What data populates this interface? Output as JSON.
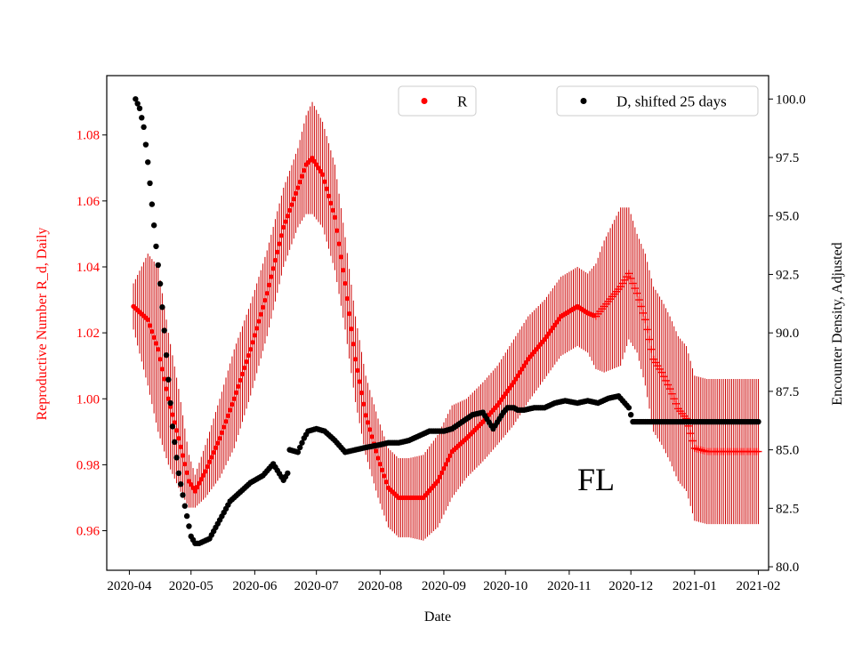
{
  "chart_data": {
    "type": "scatter",
    "xlabel": "Date",
    "ylabel_left": "Reproductive Number R_d, Daily",
    "ylabel_right": "Encounter Density, Adjusted",
    "annotation": "FL",
    "x_range": [
      "2020-03-21",
      "2021-02-06"
    ],
    "ylim_left": [
      0.948,
      1.098
    ],
    "ylim_right": [
      79.85,
      101.0
    ],
    "x_ticks": [
      "2020-04",
      "2020-05",
      "2020-06",
      "2020-07",
      "2020-08",
      "2020-09",
      "2020-10",
      "2020-11",
      "2020-12",
      "2021-01",
      "2021-02"
    ],
    "y_ticks_left": [
      "0.96",
      "0.98",
      "1.00",
      "1.02",
      "1.04",
      "1.06",
      "1.08"
    ],
    "y_ticks_right": [
      "80.0",
      "82.5",
      "85.0",
      "87.5",
      "90.0",
      "92.5",
      "95.0",
      "97.5",
      "100.0"
    ],
    "legend": [
      {
        "label": "R",
        "color": "#ff0000",
        "position": "upper-center"
      },
      {
        "label": "D, shifted 25 days",
        "color": "#000000",
        "position": "upper-right"
      }
    ],
    "colors": {
      "R": "#ff0000",
      "R_error": "#cc0000",
      "D": "#000000"
    },
    "series": [
      {
        "name": "R",
        "axis": "left",
        "marker_change_date": "2020-11-14",
        "x": [
          "2020-04-03",
          "2020-04-10",
          "2020-04-15",
          "2020-04-20",
          "2020-04-25",
          "2020-04-30",
          "2020-05-03",
          "2020-05-08",
          "2020-05-15",
          "2020-05-22",
          "2020-05-30",
          "2020-06-07",
          "2020-06-15",
          "2020-06-22",
          "2020-06-26",
          "2020-06-29",
          "2020-07-04",
          "2020-07-10",
          "2020-07-15",
          "2020-07-20",
          "2020-07-25",
          "2020-07-31",
          "2020-08-05",
          "2020-08-10",
          "2020-08-15",
          "2020-08-22",
          "2020-08-29",
          "2020-09-05",
          "2020-09-12",
          "2020-09-20",
          "2020-09-27",
          "2020-10-05",
          "2020-10-12",
          "2020-10-20",
          "2020-10-28",
          "2020-11-05",
          "2020-11-10",
          "2020-11-14",
          "2020-11-18",
          "2020-11-22",
          "2020-11-26",
          "2020-11-30",
          "2020-12-04",
          "2020-12-08",
          "2020-12-12",
          "2020-12-16",
          "2020-12-20",
          "2020-12-24",
          "2020-12-28",
          "2021-01-01",
          "2021-01-07",
          "2021-01-14",
          "2021-01-21",
          "2021-01-28",
          "2021-02-01"
        ],
        "y": [
          1.028,
          1.024,
          1.015,
          1.0,
          0.988,
          0.975,
          0.972,
          0.978,
          0.988,
          1.0,
          1.015,
          1.032,
          1.052,
          1.064,
          1.071,
          1.073,
          1.068,
          1.055,
          1.035,
          1.012,
          0.995,
          0.982,
          0.973,
          0.97,
          0.97,
          0.97,
          0.975,
          0.984,
          0.988,
          0.993,
          0.998,
          1.005,
          1.012,
          1.018,
          1.025,
          1.028,
          1.026,
          1.025,
          1.028,
          1.031,
          1.034,
          1.038,
          1.032,
          1.024,
          1.012,
          1.008,
          1.003,
          0.997,
          0.994,
          0.985,
          0.984,
          0.984,
          0.984,
          0.984,
          0.984
        ],
        "err": [
          0.007,
          0.02,
          0.025,
          0.02,
          0.015,
          0.008,
          0.005,
          0.008,
          0.012,
          0.015,
          0.014,
          0.013,
          0.012,
          0.012,
          0.015,
          0.017,
          0.016,
          0.016,
          0.014,
          0.013,
          0.012,
          0.012,
          0.012,
          0.012,
          0.012,
          0.013,
          0.014,
          0.014,
          0.012,
          0.012,
          0.012,
          0.013,
          0.013,
          0.012,
          0.012,
          0.012,
          0.012,
          0.016,
          0.02,
          0.022,
          0.024,
          0.02,
          0.018,
          0.02,
          0.022,
          0.022,
          0.022,
          0.022,
          0.022,
          0.022,
          0.022,
          0.022,
          0.022,
          0.022,
          0.022
        ]
      },
      {
        "name": "D, shifted 25 days",
        "axis": "right",
        "x": [
          "2020-04-04",
          "2020-04-06",
          "2020-04-08",
          "2020-04-10",
          "2020-04-12",
          "2020-04-14",
          "2020-04-16",
          "2020-04-18",
          "2020-04-20",
          "2020-04-22",
          "2020-04-25",
          "2020-04-28",
          "2020-05-01",
          "2020-05-03",
          "2020-05-05",
          "2020-05-10",
          "2020-05-15",
          "2020-05-20",
          "2020-05-25",
          "2020-05-30",
          "2020-06-05",
          "2020-06-10",
          "2020-06-15",
          "2020-06-17",
          "2020-06-18",
          "2020-06-22",
          "2020-06-25",
          "2020-06-27",
          "2020-07-01",
          "2020-07-05",
          "2020-07-10",
          "2020-07-15",
          "2020-07-20",
          "2020-07-25",
          "2020-07-31",
          "2020-08-05",
          "2020-08-10",
          "2020-08-15",
          "2020-08-20",
          "2020-08-25",
          "2020-08-28",
          "2020-09-01",
          "2020-09-05",
          "2020-09-10",
          "2020-09-15",
          "2020-09-20",
          "2020-09-25",
          "2020-09-30",
          "2020-10-02",
          "2020-10-05",
          "2020-10-07",
          "2020-10-10",
          "2020-10-15",
          "2020-10-20",
          "2020-10-25",
          "2020-10-30",
          "2020-11-05",
          "2020-11-10",
          "2020-11-15",
          "2020-11-20",
          "2020-11-25",
          "2020-11-28",
          "2020-11-30",
          "2020-12-02",
          "2020-12-05",
          "2020-12-10",
          "2020-12-20",
          "2020-12-31",
          "2021-01-10",
          "2021-01-20",
          "2021-02-01"
        ],
        "y": [
          100.0,
          99.6,
          98.8,
          97.3,
          95.5,
          93.7,
          92.1,
          90.1,
          88.0,
          86.0,
          84.0,
          82.6,
          81.3,
          81.0,
          81.0,
          81.2,
          82.0,
          82.8,
          83.2,
          83.6,
          83.9,
          84.4,
          83.7,
          84.0,
          85.0,
          84.9,
          85.5,
          85.8,
          85.9,
          85.8,
          85.4,
          84.9,
          85.0,
          85.1,
          85.2,
          85.3,
          85.3,
          85.4,
          85.6,
          85.8,
          85.8,
          85.8,
          85.9,
          86.2,
          86.5,
          86.6,
          85.9,
          86.6,
          86.8,
          86.8,
          86.7,
          86.7,
          86.8,
          86.8,
          87.0,
          87.1,
          87.0,
          87.1,
          87.0,
          87.2,
          87.3,
          87.0,
          86.8,
          86.2,
          86.2,
          86.2,
          86.2,
          86.2,
          86.2,
          86.2,
          86.2
        ]
      }
    ]
  }
}
